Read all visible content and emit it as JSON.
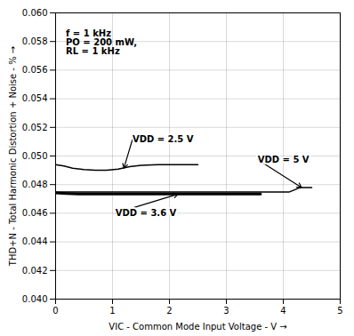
{
  "chart_data": {
    "type": "line",
    "xlabel": "VIC - Common Mode Input Voltage - V",
    "ylabel": "THD+N - Total Harmonic Distortion + Noise - %",
    "xlim": [
      0,
      5
    ],
    "ylim": [
      0.04,
      0.06
    ],
    "xticks": [
      0,
      1,
      2,
      3,
      4,
      5
    ],
    "yticks": [
      {
        "value": 0.04,
        "label": "0.040"
      },
      0.042,
      0.044,
      0.046,
      0.048,
      {
        "value": 0.05,
        "label": "0.050"
      },
      0.052,
      0.054,
      0.056,
      0.058,
      {
        "value": 0.06,
        "label": "0.060"
      }
    ],
    "grid": true,
    "series": [
      {
        "name": "VDD = 2.5 V",
        "color": "#000000",
        "x": [
          0.0,
          0.15,
          0.3,
          0.5,
          0.7,
          0.9,
          1.1,
          1.3,
          1.5,
          1.8,
          2.1,
          2.4,
          2.5
        ],
        "values": [
          0.0494,
          0.0493,
          0.04915,
          0.04905,
          0.049,
          0.049,
          0.04908,
          0.04925,
          0.04935,
          0.0494,
          0.0494,
          0.0494,
          0.0494
        ]
      },
      {
        "name": "VDD = 3.6 V",
        "color": "#000000",
        "x": [
          0.0,
          0.2,
          0.4,
          0.6,
          0.8,
          1.0,
          1.5,
          2.0,
          2.5,
          3.0,
          3.5,
          3.6
        ],
        "values": [
          0.04742,
          0.04738,
          0.04735,
          0.04734,
          0.04734,
          0.04734,
          0.04734,
          0.04734,
          0.04734,
          0.04734,
          0.04734,
          0.04734
        ]
      },
      {
        "name": "VDD = 5 V",
        "color": "#000000",
        "x": [
          0.0,
          0.5,
          1.0,
          1.5,
          2.0,
          2.5,
          3.0,
          3.5,
          4.0,
          4.1,
          4.3,
          4.5
        ],
        "values": [
          0.04748,
          0.04748,
          0.04748,
          0.04748,
          0.04748,
          0.04748,
          0.04748,
          0.04748,
          0.04748,
          0.04748,
          0.0478,
          0.0478
        ]
      }
    ],
    "annotations": [
      {
        "text": "VDD = 2.5 V",
        "xy": [
          1.2,
          0.04915
        ],
        "xytext": [
          1.35,
          0.05115
        ]
      },
      {
        "text": "VDD = 3.6 V",
        "xy": [
          2.15,
          0.04734
        ],
        "xytext": [
          1.05,
          0.046
        ]
      },
      {
        "text": "VDD = 5 V",
        "xy": [
          4.32,
          0.0478
        ],
        "xytext": [
          3.55,
          0.04975
        ]
      },
      {
        "text": "f = 1 kHz\nPO = 200 mW,\nRL = 1 kHz",
        "x": 0.18,
        "y": 0.0588
      }
    ]
  }
}
